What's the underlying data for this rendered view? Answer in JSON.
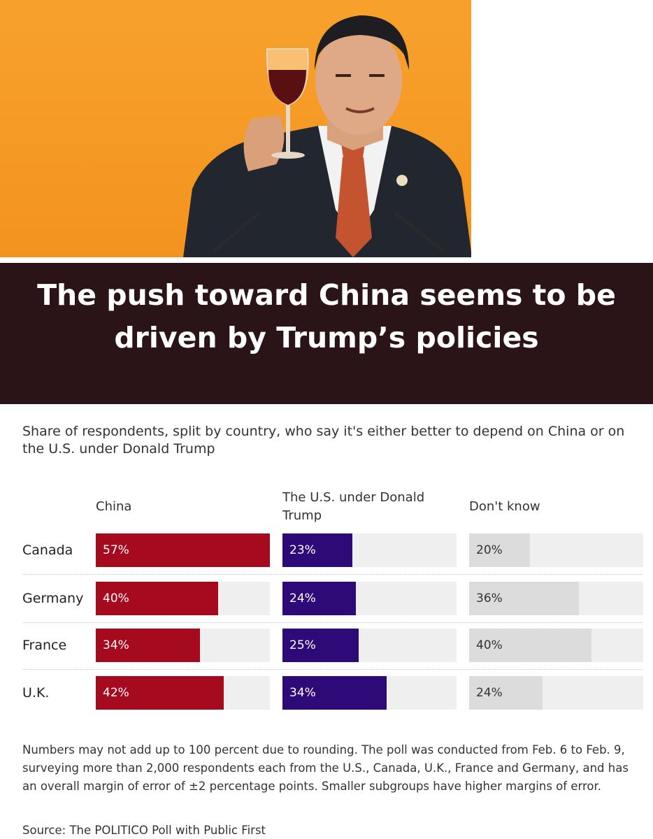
{
  "headline": "The push toward China seems to be driven by Trump’s policies",
  "subtitle": "Share of respondents, split by country, who say it's either better to depend on China or on the U.S. under Donald Trump",
  "note": "Numbers may not add up to 100 percent due to rounding. The poll was conducted from Feb. 6 to Feb. 9, surveying more than 2,000 respondents each from the U.S., Canada, U.K., France and Germany, and has an overall margin of error of ±2 percentage points. Smaller subgroups have higher margins of error.",
  "source": "Source: The POLITICO Poll with Public First",
  "colors": {
    "china": "#a60a1e",
    "us": "#2e0a78",
    "dont_know": "#dcdcdc",
    "track": "#efefef",
    "band": "#2b1418",
    "photo_bg": "#f59a24"
  },
  "chart_data": {
    "type": "bar",
    "title": "The push toward China seems to be driven by Trump’s policies",
    "categories": [
      "Canada",
      "Germany",
      "France",
      "U.K."
    ],
    "series": [
      {
        "name": "China",
        "values": [
          57,
          40,
          34,
          42
        ],
        "labels": [
          "57%",
          "40%",
          "34%",
          "42%"
        ]
      },
      {
        "name": "The U.S. under Donald Trump",
        "values": [
          23,
          24,
          25,
          34
        ],
        "labels": [
          "23%",
          "24%",
          "25%",
          "34%"
        ]
      },
      {
        "name": "Don't know",
        "values": [
          20,
          36,
          40,
          24
        ],
        "labels": [
          "20%",
          "36%",
          "40%",
          "24%"
        ]
      }
    ],
    "xlim": [
      0,
      57
    ],
    "grid": false,
    "legend": "column headers"
  }
}
